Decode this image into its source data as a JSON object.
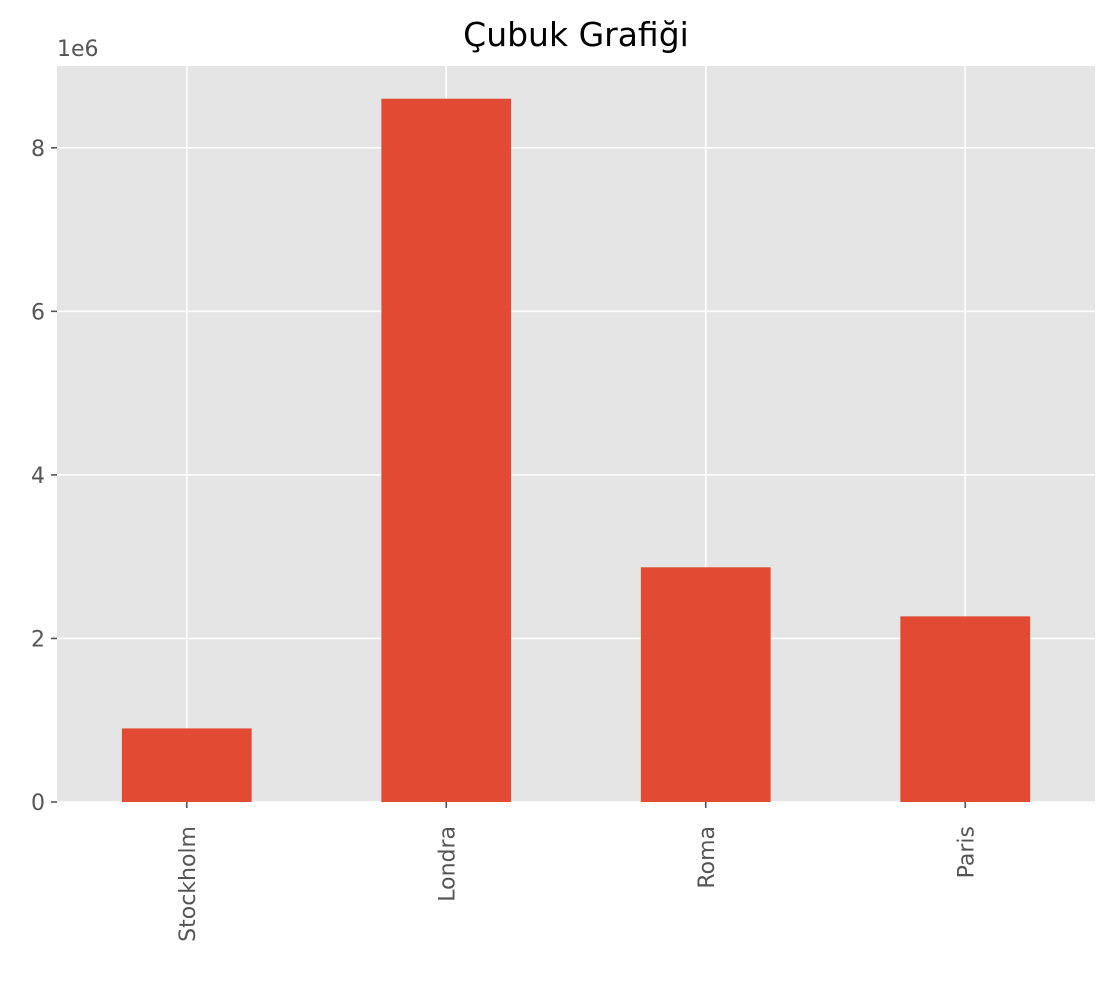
{
  "chart_data": {
    "type": "bar",
    "title": "Çubuk Grafiği",
    "xlabel": "",
    "ylabel": "",
    "categories": [
      "Stockholm",
      "Londra",
      "Roma",
      "Paris"
    ],
    "values": [
      900000,
      8600000,
      2870000,
      2270000
    ],
    "ylim": [
      0,
      9000000
    ],
    "yticks": [
      0,
      2000000,
      4000000,
      6000000,
      8000000
    ],
    "ytick_labels": [
      "0",
      "2",
      "4",
      "6",
      "8"
    ],
    "y_offset_label": "1e6",
    "grid": true,
    "legend": "none",
    "colors": {
      "bar": "#E24A33",
      "plot_background": "#E5E5E5",
      "grid": "#FFFFFF",
      "tick_text": "#555555"
    }
  }
}
